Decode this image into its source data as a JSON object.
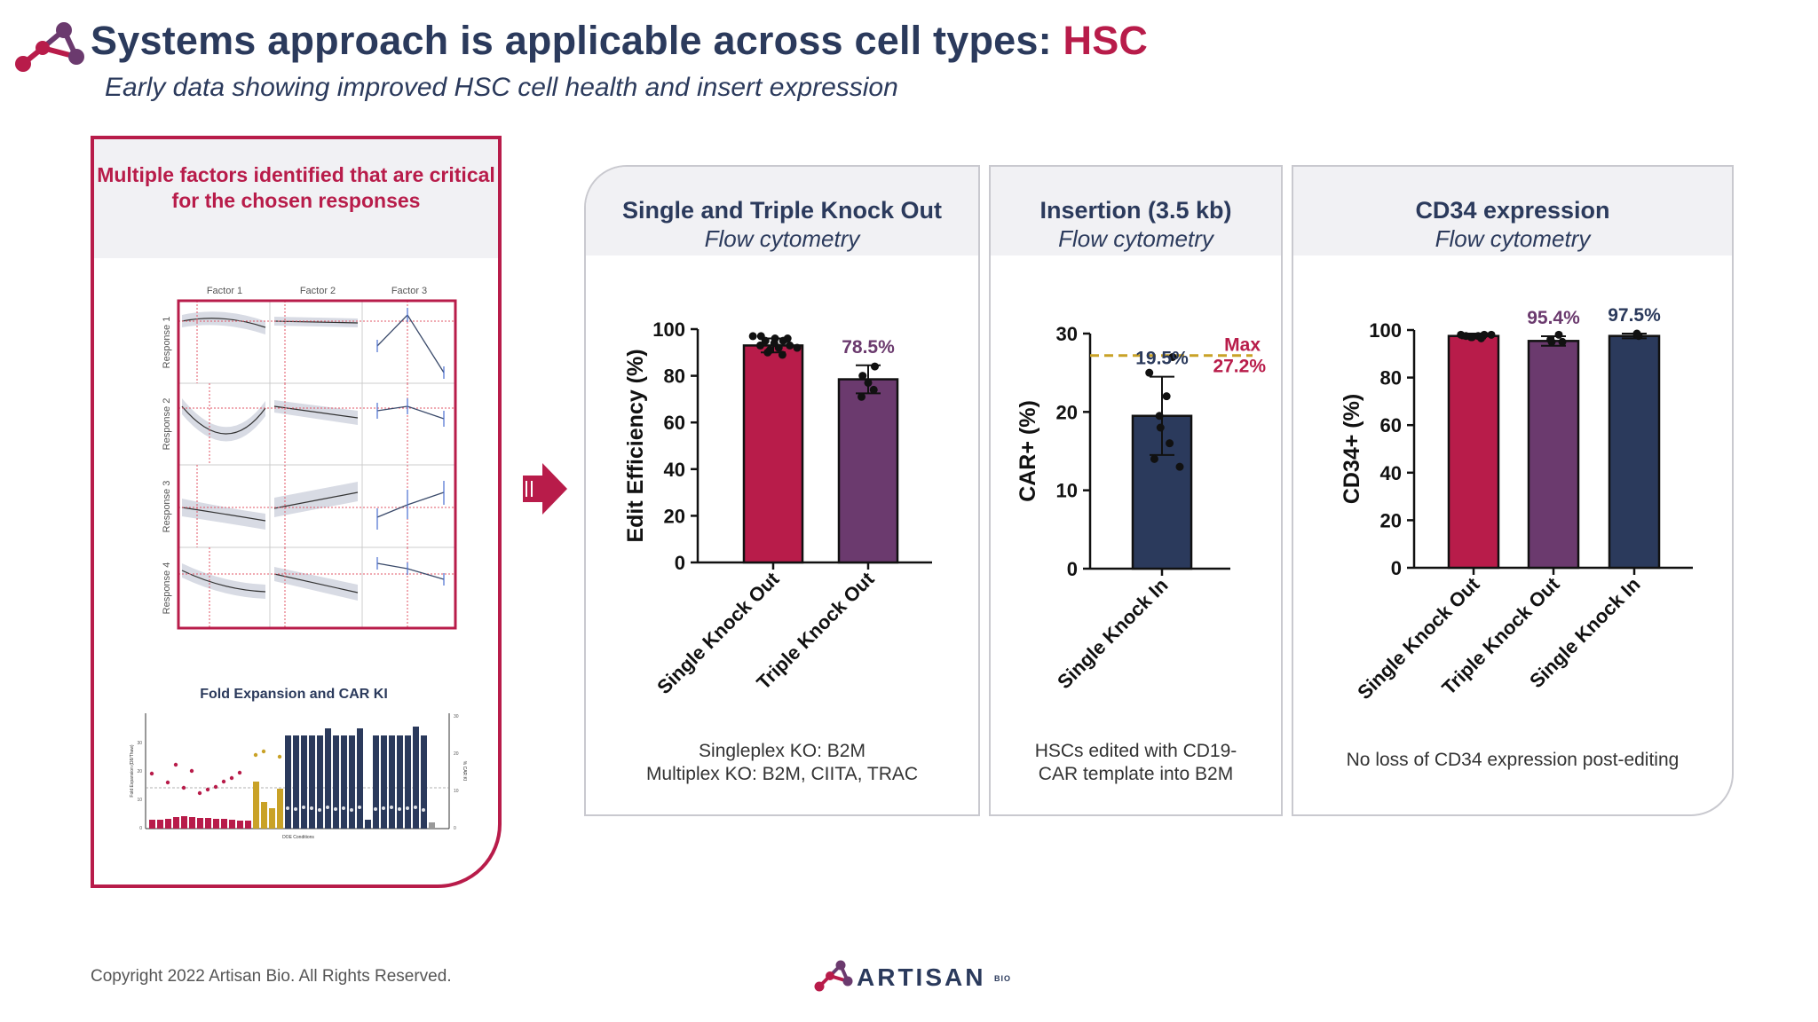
{
  "header": {
    "title_main": "Systems approach is applicable across cell types: ",
    "title_accent": "HSC",
    "subtitle": "Early data showing improved HSC cell health and insert expression"
  },
  "left_panel": {
    "heading": "Multiple factors identified that are critical for the chosen responses",
    "doe": {
      "factors": [
        "Factor 1",
        "Factor 2",
        "Factor 3"
      ],
      "responses": [
        "Response 1",
        "Response 2",
        "Response 3",
        "Response 4"
      ]
    },
    "fold": {
      "title": "Fold Expansion and CAR KI",
      "y_left_label": "Fold Expansion (D8/Thaw)",
      "y_right_label": "% CAR KI",
      "x_label": "DOE Conditions",
      "ticks_left": [
        "30",
        "20",
        "10",
        "0"
      ],
      "ticks_right": [
        "30",
        "20",
        "10",
        "0"
      ]
    }
  },
  "panels": [
    {
      "title": "Single and Triple Knock Out",
      "subtitle": "Flow cytometry",
      "caption_lines": [
        "Singleplex KO: B2M",
        "Multiplex KO: B2M, CIITA, TRAC"
      ]
    },
    {
      "title": "Insertion (3.5 kb)",
      "subtitle": "Flow cytometry",
      "caption_lines": [
        "HSCs edited with CD19-",
        "CAR template into B2M"
      ]
    },
    {
      "title": "CD34 expression",
      "subtitle": "Flow cytometry",
      "caption_lines": [
        "No loss of CD34 expression post-editing"
      ]
    }
  ],
  "chart_data": [
    {
      "type": "bar",
      "ylabel": "Edit Efficiency (%)",
      "ylim": [
        0,
        100
      ],
      "yticks": [
        "0",
        "20",
        "40",
        "60",
        "80",
        "100"
      ],
      "categories": [
        "Single Knock Out",
        "Triple Knock Out"
      ],
      "values": [
        93,
        78.5
      ],
      "errors": [
        3,
        6
      ],
      "colors": [
        "#b81c4a",
        "#6b3a6e"
      ],
      "value_labels": [
        "",
        "78.5%"
      ],
      "points": [
        [
          96,
          97,
          95,
          93,
          92,
          90,
          94,
          96,
          91,
          89,
          95,
          93,
          97,
          92
        ],
        [
          84,
          80,
          77,
          74,
          71
        ]
      ]
    },
    {
      "type": "bar",
      "ylabel": "CAR+ (%)",
      "ylim": [
        0,
        30
      ],
      "yticks": [
        "0",
        "10",
        "20",
        "30"
      ],
      "categories": [
        "Single Knock In"
      ],
      "values": [
        19.5
      ],
      "errors": [
        5
      ],
      "colors": [
        "#2b3a5c"
      ],
      "value_labels": [
        "19.5%"
      ],
      "reference_line": {
        "value": 27.2,
        "label_top": "Max",
        "label_bottom": "27.2%",
        "color": "#c9a227"
      },
      "points": [
        [
          27,
          25,
          22,
          19.5,
          18,
          16,
          14,
          13
        ]
      ]
    },
    {
      "type": "bar",
      "ylabel": "CD34+ (%)",
      "ylim": [
        0,
        100
      ],
      "yticks": [
        "0",
        "20",
        "40",
        "60",
        "80",
        "100"
      ],
      "categories": [
        "Single Knock Out",
        "Triple Knock Out",
        "Single Knock In"
      ],
      "values": [
        97.5,
        95.4,
        97.5
      ],
      "errors": [
        1,
        2,
        1
      ],
      "colors": [
        "#b81c4a",
        "#6b3a6e",
        "#2b3a5c"
      ],
      "value_labels": [
        "",
        "95.4%",
        "97.5%"
      ],
      "points": [
        [
          98,
          98,
          97.5,
          97,
          97,
          96.5,
          97.5,
          98
        ],
        [
          98,
          96,
          95,
          95
        ],
        [
          98.5,
          97.5
        ]
      ]
    }
  ],
  "footer": {
    "copyright": "Copyright 2022 Artisan Bio. All Rights Reserved.",
    "brand": "ARTISAN",
    "brand_sub": "BIO"
  },
  "colors": {
    "navy": "#2b3a5c",
    "crimson": "#b81c4a",
    "plum": "#6b3a6e",
    "gold": "#c9a227",
    "panel_header": "#f1f1f4"
  },
  "icons": [
    "artisan-logo-icon",
    "arrow-right-icon"
  ]
}
